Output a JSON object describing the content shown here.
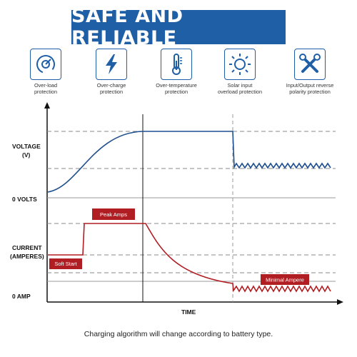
{
  "banner": {
    "title": "SAFE AND RELIABLE"
  },
  "features": [
    {
      "icon": "gauge-icon",
      "label_line1": "Over-load",
      "label_line2": "protection"
    },
    {
      "icon": "lightning-icon",
      "label_line1": "Over-charge",
      "label_line2": "protection"
    },
    {
      "icon": "thermometer-icon",
      "label_line1": "Over-temperature",
      "label_line2": "protection"
    },
    {
      "icon": "sun-icon",
      "label_line1": "Solar input",
      "label_line2": "overload protection"
    },
    {
      "icon": "tools-icon",
      "label_line1": "Input/Output reverse",
      "label_line2": "polarity protection"
    }
  ],
  "diagram": {
    "voltage_label_1": "VOLTAGE",
    "voltage_label_2": "(V)",
    "zero_volts": "0 VOLTS",
    "current_label_1": "CURRENT",
    "current_label_2": "(AMPERES)",
    "zero_amp": "0 AMP",
    "x_label": "TIME",
    "tags": {
      "peak": "Peak Amps",
      "soft_start": "Soft Start",
      "minimal": "Minimal Ampere"
    },
    "colors": {
      "voltage_curve": "#1f4f8f",
      "current_curve": "#b01e23",
      "tag_bg": "#b01e23",
      "dashed": "#8a8a8a"
    }
  },
  "footnote": "Charging algorithm will change according to battery type."
}
